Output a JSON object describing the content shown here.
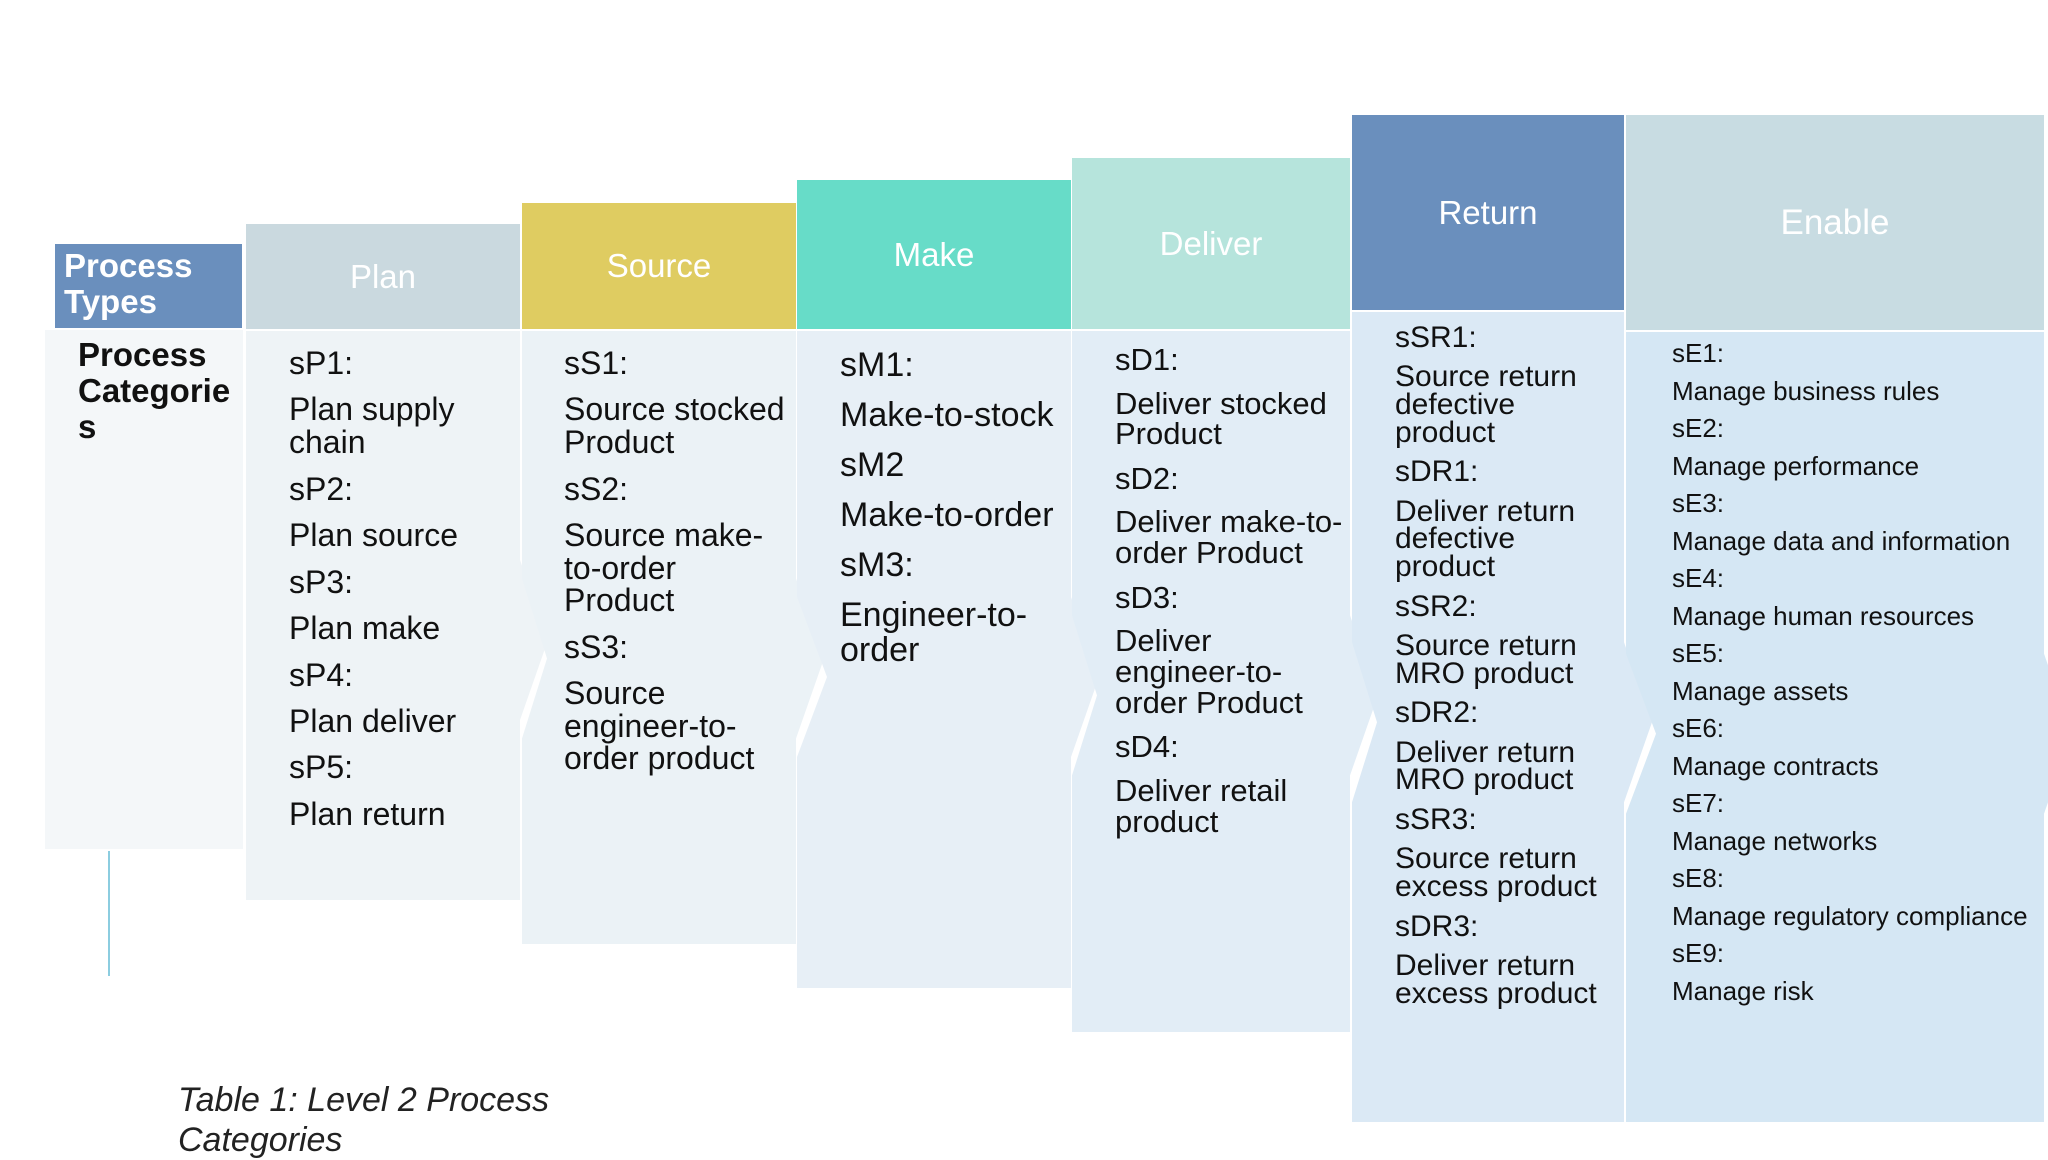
{
  "process_types": {
    "header": "Process Types",
    "label": "Process Categories"
  },
  "columns": [
    {
      "name": "Plan",
      "header_color": "#cad9df",
      "body_color": "#eef3f6",
      "items": [
        "sP1:",
        "Plan supply chain",
        "sP2:",
        "Plan source",
        "sP3:",
        "Plan make",
        "sP4:",
        "Plan deliver",
        "sP5:",
        "Plan return"
      ]
    },
    {
      "name": "Source",
      "header_color": "#dfcc61",
      "body_color": "#ebf2f6",
      "items": [
        "sS1:",
        "Source stocked Product",
        "sS2:",
        "Source make-to-order Product",
        "sS3:",
        "Source engineer-to-order product"
      ]
    },
    {
      "name": "Make",
      "header_color": "#67dcc8",
      "body_color": "#e7eff6",
      "items": [
        "sM1:",
        "Make-to-stock",
        "sM2",
        "Make-to-order",
        "sM3:",
        "Engineer-to-order"
      ]
    },
    {
      "name": "Deliver",
      "header_color": "#b6e4dc",
      "body_color": "#e2edf6",
      "items": [
        "sD1:",
        "Deliver stocked Product",
        "sD2:",
        "Deliver make-to-order Product",
        "sD3:",
        "Deliver engineer-to-order Product",
        "sD4:",
        "Deliver retail product"
      ]
    },
    {
      "name": "Return",
      "header_color": "#6a8fbd",
      "body_color": "#dbe9f5",
      "items": [
        "sSR1:",
        "Source return defective product",
        "sDR1:",
        "Deliver return defective product",
        "sSR2:",
        "Source return MRO product",
        "sDR2:",
        "Deliver return MRO product",
        "sSR3:",
        "Source return excess product",
        "sDR3:",
        "Deliver return excess product"
      ]
    },
    {
      "name": "Enable",
      "header_color": "#c8dce2",
      "body_color": "#d5e7f4",
      "items": [
        "sE1:",
        "Manage business rules",
        "sE2:",
        "Manage performance",
        "sE3:",
        "Manage data and information",
        "sE4:",
        "Manage human resources",
        "sE5:",
        "Manage assets",
        "sE6:",
        "Manage contracts",
        "sE7:",
        "Manage networks",
        "sE8:",
        "Manage regulatory compliance",
        "sE9:",
        "Manage risk"
      ]
    }
  ],
  "caption": "Table 1: Level 2 Process Categories"
}
